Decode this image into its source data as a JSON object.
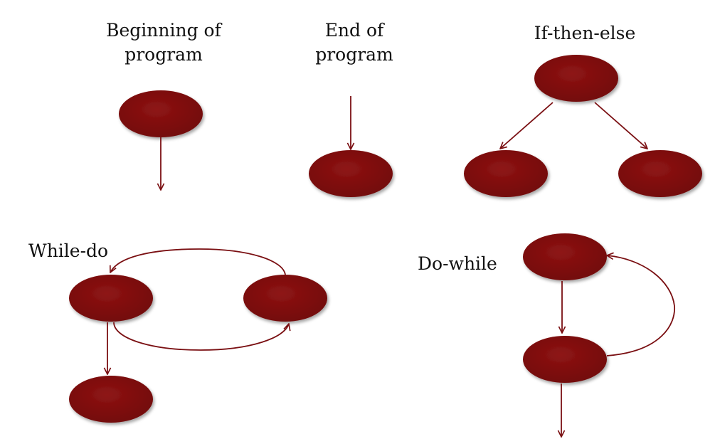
{
  "labels": {
    "beginning": [
      "Beginning of",
      "program"
    ],
    "end": [
      "End of",
      "program"
    ],
    "if_then_else": "If-then-else",
    "while_do": "While-do",
    "do_while": "Do-while"
  },
  "colors": {
    "node_fill": "#7d0c0c",
    "node_fill_light": "#8e1414",
    "edge": "#7a0f12",
    "text": "#111111"
  },
  "diagrams": [
    {
      "id": "beginning",
      "nodes": 1,
      "edges": [
        "node-to-exit"
      ]
    },
    {
      "id": "end",
      "nodes": 1,
      "edges": [
        "entry-to-node"
      ]
    },
    {
      "id": "if_then_else",
      "nodes": 3,
      "edges": [
        "condition-to-then",
        "condition-to-else"
      ]
    },
    {
      "id": "while_do",
      "nodes": 3,
      "edges": [
        "condition-to-body",
        "body-back-to-condition",
        "condition-to-exit"
      ]
    },
    {
      "id": "do_while",
      "nodes": 2,
      "edges": [
        "body-to-condition",
        "condition-back-to-body",
        "condition-to-exit"
      ]
    }
  ]
}
